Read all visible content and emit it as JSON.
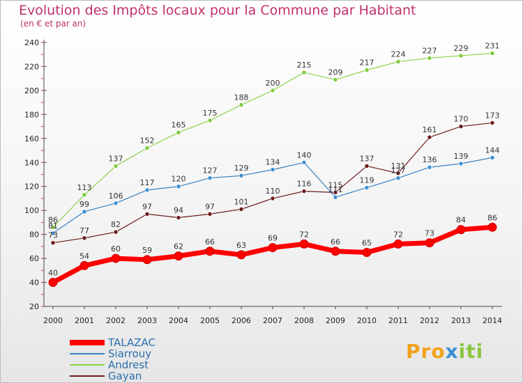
{
  "title": "Evolution des Impôts locaux pour la Commune par Habitant",
  "subtitle": "(en € et par an)",
  "logo": {
    "p1": "Pro",
    "p2": "x",
    "p3": "iti"
  },
  "chart_data": {
    "type": "line",
    "title": "Evolution des Impôts locaux pour la Commune par Habitant",
    "subtitle": "(en € et par an)",
    "xlabel": "",
    "ylabel": "",
    "ylim": [
      20,
      240
    ],
    "y_ticks": [
      20,
      40,
      60,
      80,
      100,
      120,
      140,
      160,
      180,
      200,
      220,
      240
    ],
    "x": [
      "2000",
      "2001",
      "2002",
      "2003",
      "2004",
      "2005",
      "2006",
      "2007",
      "2008",
      "2009",
      "2010",
      "2011",
      "2012",
      "2013",
      "2014"
    ],
    "grid": false,
    "legend_position": "bottom-left",
    "series": [
      {
        "name": "TALAZAC",
        "color": "#ff0000",
        "marker": "#ff0000",
        "thick": true,
        "values": [
          40,
          54,
          60,
          59,
          62,
          66,
          63,
          69,
          72,
          66,
          65,
          72,
          73,
          84,
          86
        ]
      },
      {
        "name": "Siarrouy",
        "color": "#3a7fc0",
        "marker": "#3a8fd6",
        "thick": false,
        "values": [
          81,
          99,
          106,
          117,
          120,
          127,
          129,
          134,
          140,
          111,
          119,
          127,
          136,
          139,
          144
        ]
      },
      {
        "name": "Andrest",
        "color": "#8cd24a",
        "marker": "#7ccc3c",
        "thick": false,
        "values": [
          86,
          113,
          137,
          152,
          165,
          175,
          188,
          200,
          215,
          209,
          217,
          224,
          227,
          229,
          231
        ]
      },
      {
        "name": "Gayan",
        "color": "#6b1a1a",
        "marker": "#6b1a1a",
        "thick": false,
        "values": [
          73,
          77,
          82,
          97,
          94,
          97,
          101,
          110,
          116,
          115,
          137,
          131,
          161,
          170,
          173
        ]
      }
    ],
    "point_labels": [
      [
        "40",
        "54",
        "60",
        "59",
        "62",
        "66",
        "63",
        "69",
        "72",
        "66",
        "65",
        "72",
        "73",
        "84",
        "86"
      ],
      [
        "81",
        "99",
        "106",
        "117",
        "120",
        "127",
        "129",
        "134",
        "140",
        "111",
        "119",
        "127",
        "136",
        "139",
        "144"
      ],
      [
        "86",
        "113",
        "137",
        "152",
        "165",
        "175",
        "188",
        "200",
        "215",
        "209",
        "217",
        "224",
        "227",
        "229",
        "231"
      ],
      [
        "73",
        "77",
        "82",
        "97",
        "94",
        "97",
        "101",
        "110",
        "116",
        "115",
        "137",
        "131",
        "161",
        "170",
        "173"
      ]
    ]
  }
}
